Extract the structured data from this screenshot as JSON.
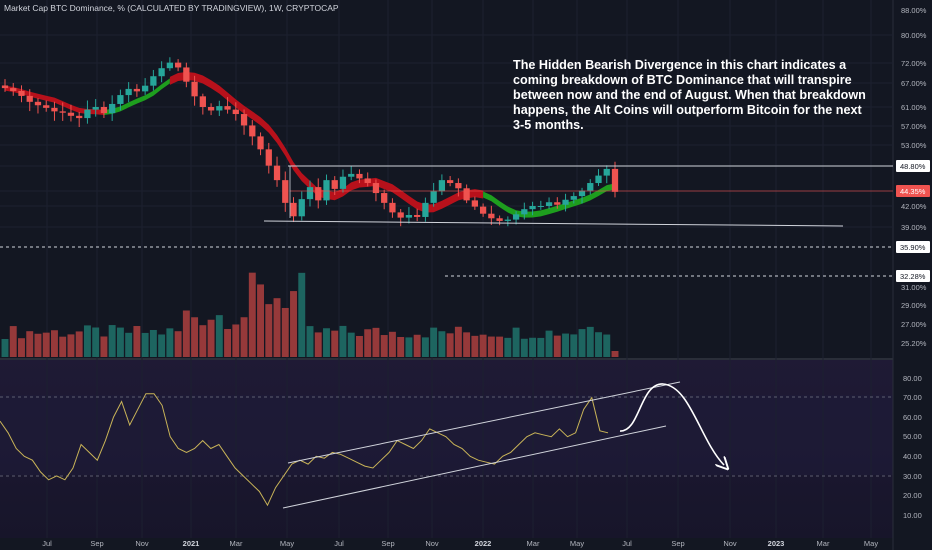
{
  "title": "Market Cap BTC Dominance, % (CALCULATED BY TRADINGVIEW), 1W, CRYPTOCAP",
  "annotation": "The Hidden Bearish Divergence in this chart indicates a coming breakdown of BTC Dominance that will transpire between now and the end of August. When that breakdown happens, the Alt Coins will outperform Bitcoin for the next 3-5 months.",
  "colors": {
    "background": "#131722",
    "bull": "#26a69a",
    "bear": "#ef5350",
    "ribbon_bear": "#c0111b",
    "ribbon_bull": "#1fa51f",
    "rsi_line": "#c9b458",
    "lines": "#d1d4dc"
  },
  "chart_data": [
    {
      "type": "candlestick",
      "title": "Market Cap BTC Dominance, % (CALCULATED BY TRADINGVIEW), 1W, CRYPTOCAP",
      "x_ticks": [
        "Jul",
        "Sep",
        "Nov",
        "2021",
        "Mar",
        "May",
        "Jul",
        "Sep",
        "Nov",
        "2022",
        "Mar",
        "May",
        "Jul",
        "Sep",
        "Nov",
        "2023",
        "Mar",
        "May"
      ],
      "y_ticks": [
        "88.00%",
        "80.00%",
        "72.00%",
        "67.00%",
        "61.00%",
        "57.00%",
        "53.00%",
        "48.80%",
        "44.35%",
        "42.00%",
        "39.00%",
        "35.90%",
        "32.28%",
        "31.00%",
        "29.00%",
        "27.00%",
        "25.20%"
      ],
      "price_labels": {
        "resistance": "48.80%",
        "last": "44.35%",
        "support": "35.90%",
        "lower": "32.28%"
      },
      "y_scale": "log",
      "approx_close_series": [
        65.5,
        64.8,
        63.6,
        62.2,
        61.4,
        60.8,
        60.0,
        59.7,
        59.0,
        58.5,
        60.4,
        61.0,
        59.6,
        61.7,
        63.8,
        65.3,
        64.7,
        66.1,
        68.5,
        70.6,
        72.1,
        70.8,
        67.1,
        63.5,
        61.0,
        60.2,
        61.2,
        60.4,
        59.4,
        56.9,
        54.6,
        52.0,
        48.9,
        46.3,
        42.5,
        40.4,
        43.1,
        45.1,
        42.9,
        46.3,
        44.8,
        46.9,
        47.4,
        46.6,
        45.8,
        44.1,
        42.5,
        41.0,
        40.2,
        40.6,
        40.3,
        42.5,
        44.4,
        46.3,
        45.8,
        44.9,
        42.9,
        41.9,
        40.8,
        40.1,
        39.7,
        39.9,
        40.7,
        41.5,
        42.0,
        42.0,
        42.6,
        42.2,
        43.0,
        43.6,
        44.5,
        45.8,
        47.1,
        48.3,
        44.3
      ],
      "indicators": [
        "moving average ribbon (bearish red / bullish green)",
        "volume histogram",
        "RSI"
      ]
    },
    {
      "type": "line",
      "name": "RSI",
      "y_ticks": [
        "80.00",
        "70.00",
        "60.00",
        "50.00",
        "40.00",
        "30.00",
        "20.00",
        "10.00"
      ],
      "ylim": [
        0,
        85
      ],
      "bands": [
        30,
        70
      ],
      "approx_values": [
        58,
        52,
        44,
        40,
        38,
        32,
        28,
        30,
        28,
        34,
        46,
        42,
        38,
        48,
        60,
        68,
        56,
        64,
        72,
        72,
        66,
        50,
        44,
        42,
        44,
        48,
        44,
        46,
        40,
        34,
        30,
        26,
        22,
        15,
        24,
        30,
        36,
        38,
        36,
        40,
        39,
        42,
        41,
        39,
        37,
        35,
        34,
        38,
        42,
        48,
        46,
        44,
        48,
        54,
        52,
        50,
        46,
        44,
        40,
        38,
        37,
        36,
        40,
        42,
        46,
        50,
        52,
        51,
        50,
        54,
        50,
        52,
        64,
        70,
        53,
        52
      ],
      "projection": "curved arrow rising to ~76 then falling to ~34 (Jul–Oct 2022)"
    }
  ]
}
